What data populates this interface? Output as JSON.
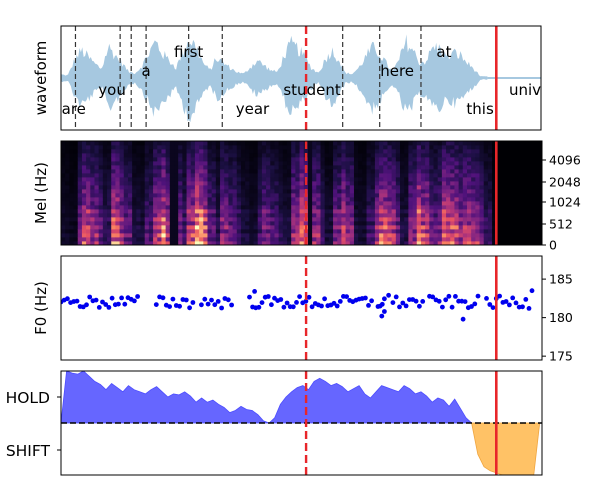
{
  "colors": {
    "waveform": "#a6c8e0",
    "f0_points": "#0000ee",
    "hold_fill": "#6666ff",
    "shift_fill": "#ffc266",
    "word_boundary": "#333333",
    "current_marker": "#e8262a",
    "threshold": "#000000"
  },
  "chart_data": [
    {
      "type": "area",
      "panel": "waveform",
      "ylabel": "waveform",
      "x_extent": [
        0,
        1
      ],
      "envelope": [
        0.07,
        0.05,
        0.35,
        0.55,
        0.42,
        0.28,
        0.18,
        0.62,
        0.45,
        0.3,
        0.12,
        0.1,
        0.25,
        0.5,
        0.72,
        0.48,
        0.35,
        0.2,
        0.52,
        0.78,
        0.6,
        0.3,
        0.15,
        0.4,
        0.3,
        0.2,
        0.12,
        0.08,
        0.22,
        0.35,
        0.25,
        0.15,
        0.12,
        0.45,
        0.68,
        0.58,
        0.42,
        0.2,
        0.1,
        0.35,
        0.55,
        0.38,
        0.1,
        0.08,
        0.2,
        0.42,
        0.6,
        0.5,
        0.3,
        0.12,
        0.38,
        0.72,
        0.55,
        0.3,
        0.35,
        0.62,
        0.58,
        0.4,
        0.5,
        0.45,
        0.3,
        0.18,
        0.03,
        0.03
      ],
      "envelope_x_end": 0.82,
      "words": [
        {
          "text": "are",
          "x": 0.03,
          "level": 3
        },
        {
          "text": "you",
          "x": 0.12,
          "level": 2
        },
        {
          "text": "a",
          "x": 0.2,
          "level": 1
        },
        {
          "text": "first",
          "x": 0.3,
          "level": 0
        },
        {
          "text": "year",
          "x": 0.45,
          "level": 3
        },
        {
          "text": "student",
          "x": 0.59,
          "level": 2
        },
        {
          "text": "here",
          "x": 0.79,
          "level": 1
        },
        {
          "text": "at",
          "x": 0.9,
          "level": 0
        },
        {
          "text": "this",
          "x": 0.985,
          "level": 3
        },
        {
          "text": "university",
          "x": 1.14,
          "level": 2
        }
      ],
      "word_boundaries": [
        0.034,
        0.139,
        0.165,
        0.2,
        0.3,
        0.379,
        0.662,
        0.749,
        0.846
      ],
      "current_word_marker": 0.576,
      "current_time_marker": 1.023
    },
    {
      "type": "heatmap",
      "panel": "mel",
      "ylabel": "Mel (Hz)",
      "yticks": [
        "0",
        "512",
        "1024",
        "2048",
        "4096"
      ],
      "colormap": "magma"
    },
    {
      "type": "scatter",
      "panel": "f0",
      "ylabel": "F0 (Hz)",
      "ylim": [
        174.5,
        188
      ],
      "yticks": [
        175,
        180,
        185
      ],
      "segments": [
        [
          0.0,
          0.18
        ],
        [
          0.224,
          0.31
        ],
        [
          0.33,
          0.401
        ],
        [
          0.443,
          0.73
        ],
        [
          0.745,
          0.76
        ],
        [
          0.78,
          0.85
        ],
        [
          0.866,
          0.98
        ],
        [
          1.0,
          1.1
        ]
      ],
      "outliers": [
        {
          "x": 0.455,
          "y": 183.4
        },
        {
          "x": 0.754,
          "y": 180.2
        },
        {
          "x": 0.76,
          "y": 180.8
        },
        {
          "x": 0.77,
          "y": 182.9
        },
        {
          "x": 0.945,
          "y": 179.8
        },
        {
          "x": 1.107,
          "y": 183.5
        }
      ]
    },
    {
      "type": "area",
      "panel": "turn-taking",
      "yticks": [
        "HOLD",
        "SHIFT"
      ],
      "threshold": 0.5,
      "hold_curve": [
        0.5,
        1.0,
        0.98,
        0.97,
        1.0,
        0.95,
        0.9,
        0.87,
        0.82,
        0.88,
        0.84,
        0.8,
        0.86,
        0.82,
        0.8,
        0.78,
        0.82,
        0.85,
        0.8,
        0.75,
        0.78,
        0.77,
        0.8,
        0.76,
        0.7,
        0.74,
        0.7,
        0.72,
        0.68,
        0.65,
        0.6,
        0.62,
        0.66,
        0.63,
        0.62,
        0.58,
        0.52,
        0.5,
        0.55,
        0.68,
        0.75,
        0.8,
        0.84,
        0.86,
        0.82,
        0.9,
        0.93,
        0.9,
        0.86,
        0.88,
        0.85,
        0.8,
        0.83,
        0.86,
        0.78,
        0.74,
        0.8,
        0.86,
        0.84,
        0.82,
        0.8,
        0.86,
        0.83,
        0.78,
        0.8,
        0.76,
        0.7,
        0.74,
        0.72,
        0.66,
        0.73,
        0.64,
        0.55,
        0.5
      ],
      "shift_curve": [
        0.5,
        0.2,
        0.08,
        0.04,
        0.02,
        0.0,
        0.0,
        -0.02,
        -0.02,
        -0.01,
        -0.02,
        0.5
      ]
    }
  ]
}
